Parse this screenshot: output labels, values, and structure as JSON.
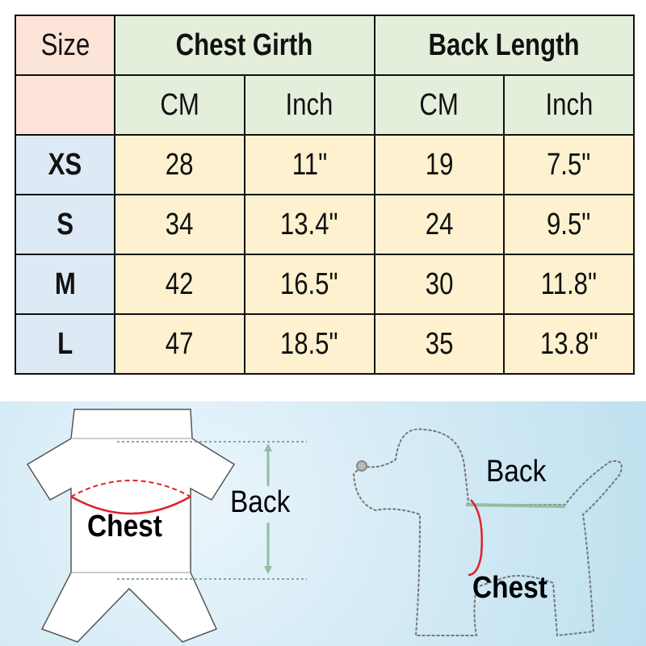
{
  "table": {
    "size_header": "Size",
    "groups": [
      "Chest Girth",
      "Back Length"
    ],
    "units": [
      "CM",
      "Inch",
      "CM",
      "Inch"
    ],
    "rows": [
      {
        "size": "XS",
        "values": [
          "28",
          "11\"",
          "19",
          "7.5\""
        ]
      },
      {
        "size": "S",
        "values": [
          "34",
          "13.4\"",
          "24",
          "9.5\""
        ]
      },
      {
        "size": "M",
        "values": [
          "42",
          "16.5\"",
          "30",
          "11.8\""
        ]
      },
      {
        "size": "L",
        "values": [
          "47",
          "18.5\"",
          "35",
          "13.8\""
        ]
      }
    ]
  },
  "illustration": {
    "garment": {
      "chest_label": "Chest",
      "back_label": "Back"
    },
    "dog": {
      "back_label": "Back",
      "chest_label": "Chest"
    }
  },
  "colors": {
    "size_header": "#fde4d8",
    "group_header": "#e3efdb",
    "size_cell": "#dde9f5",
    "value_cell": "#fdf1cf",
    "chest_line": "#e02030",
    "back_arrow": "#8fbfa0"
  }
}
